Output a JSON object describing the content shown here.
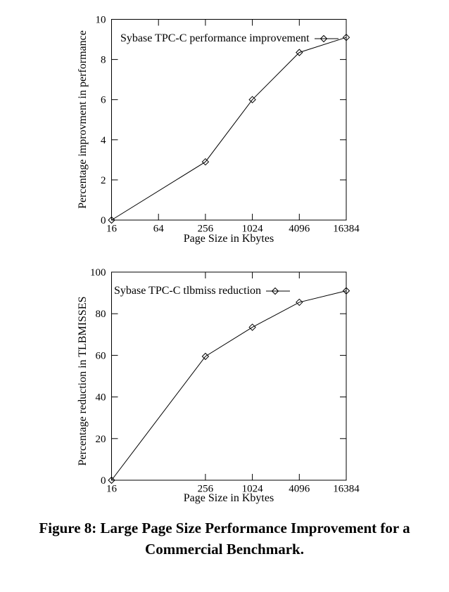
{
  "figure": {
    "caption_line1": "Figure 8: Large Page Size Performance Improvement for a",
    "caption_line2": "Commercial Benchmark."
  },
  "colors": {
    "foreground": "#000000",
    "background": "#ffffff"
  },
  "chart_data": [
    {
      "type": "line",
      "legend": "Sybase TPC-C performance improvement",
      "marker": "open-diamond",
      "line_color": "#000000",
      "xlabel": "Page Size in Kbytes",
      "ylabel": "Percentage improvment in performance",
      "x_scale": "log",
      "xlim": [
        16,
        16384
      ],
      "ylim": [
        0,
        10
      ],
      "x_ticks": [
        16,
        64,
        256,
        1024,
        4096,
        16384
      ],
      "y_ticks": [
        0,
        2,
        4,
        6,
        8,
        10
      ],
      "grid": false,
      "legend_position": "top-left-inside",
      "x": [
        16,
        256,
        1024,
        4096,
        16384
      ],
      "values": [
        0,
        2.9,
        6.0,
        8.35,
        9.1
      ]
    },
    {
      "type": "line",
      "legend": "Sybase TPC-C tlbmiss reduction",
      "marker": "open-diamond",
      "line_color": "#000000",
      "xlabel": "Page Size in Kbytes",
      "ylabel": "Percentage reduction in TLBMISSES",
      "x_scale": "log",
      "xlim": [
        16,
        16384
      ],
      "ylim": [
        0,
        100
      ],
      "x_ticks": [
        16,
        256,
        1024,
        4096,
        16384
      ],
      "y_ticks": [
        0,
        20,
        40,
        60,
        80,
        100
      ],
      "grid": false,
      "legend_position": "top-left-inside",
      "x": [
        16,
        256,
        1024,
        4096,
        16384
      ],
      "values": [
        0,
        59.5,
        73.5,
        85.5,
        91
      ]
    }
  ]
}
